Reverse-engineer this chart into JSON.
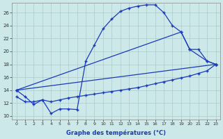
{
  "xlabel": "Graphe des températures (°C)",
  "bg_color": "#cce8e8",
  "grid_color": "#aacccc",
  "line_color": "#1a3ab8",
  "line_color2": "#2244cc",
  "curve1_x": [
    0,
    1,
    2,
    3,
    4,
    5,
    6,
    7,
    8,
    9,
    10,
    11,
    12,
    13,
    14,
    15,
    16,
    17,
    18,
    19,
    20,
    22,
    23
  ],
  "curve1_y": [
    14.0,
    13.0,
    11.8,
    12.5,
    10.4,
    11.1,
    11.1,
    11.0,
    18.5,
    21.0,
    23.5,
    25.0,
    26.2,
    26.7,
    27.0,
    27.2,
    27.2,
    26.0,
    24.0,
    23.0,
    20.3,
    18.5,
    18.0
  ],
  "curve2_x": [
    0,
    19,
    20,
    21,
    22,
    23
  ],
  "curve2_y": [
    14.0,
    23.0,
    20.3,
    20.3,
    18.5,
    18.0
  ],
  "curve3_x": [
    0,
    23
  ],
  "curve3_y": [
    14.0,
    18.0
  ],
  "curve4_x": [
    0,
    1,
    2,
    3,
    4,
    5,
    6,
    7,
    8,
    9,
    10,
    11,
    12,
    13,
    14,
    15,
    16,
    17,
    18,
    19,
    20,
    21,
    22,
    23
  ],
  "curve4_y": [
    13.0,
    12.2,
    12.2,
    12.5,
    12.2,
    12.5,
    12.8,
    13.0,
    13.2,
    13.4,
    13.6,
    13.8,
    14.0,
    14.2,
    14.4,
    14.7,
    15.0,
    15.3,
    15.6,
    15.9,
    16.2,
    16.6,
    17.0,
    18.0
  ],
  "ylim_min": 9.5,
  "ylim_max": 27.5,
  "xlim_min": -0.5,
  "xlim_max": 23.5,
  "yticks": [
    10,
    12,
    14,
    16,
    18,
    20,
    22,
    24,
    26
  ],
  "xtick_labels": [
    "0",
    "1",
    "2",
    "3",
    "4",
    "5",
    "6",
    "7",
    "8",
    "9",
    "10",
    "11",
    "12",
    "13",
    "14",
    "15",
    "16",
    "17",
    "18",
    "19",
    "20",
    "21",
    "22",
    "23"
  ]
}
